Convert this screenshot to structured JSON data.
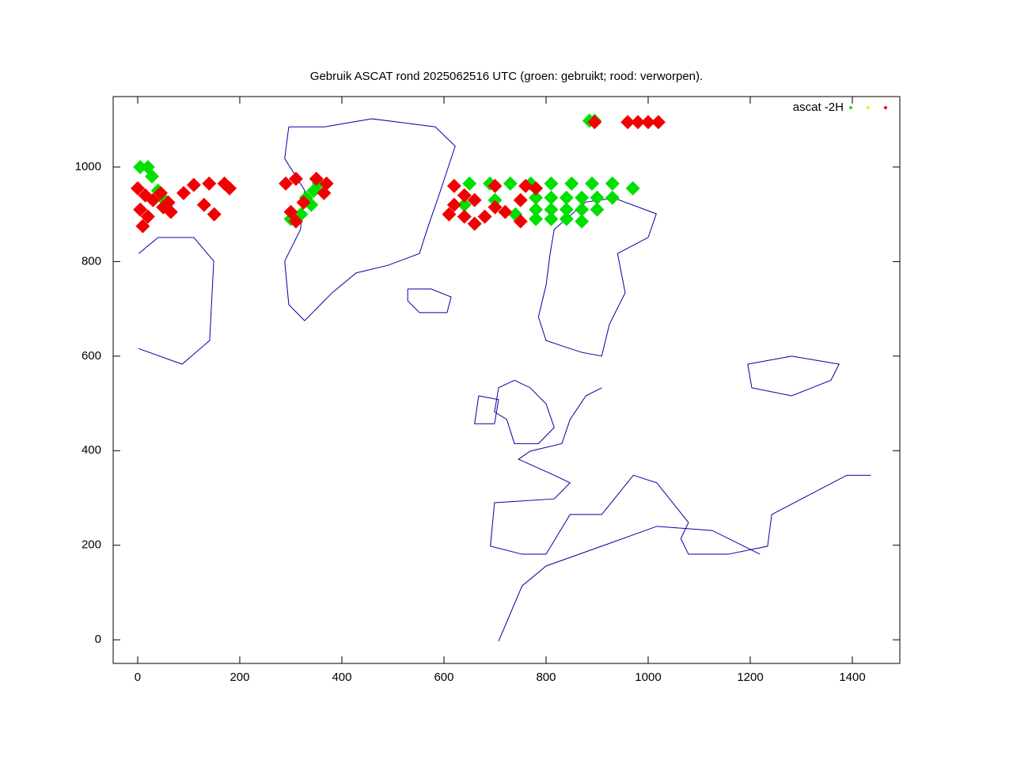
{
  "chart_data": {
    "type": "scatter",
    "title": "Gebruik ASCAT rond 2025062516 UTC (groen: gebruikt; rood: verworpen).",
    "xlim": [
      -48,
      1493
    ],
    "ylim": [
      -50,
      1149
    ],
    "xticks": [
      0,
      200,
      400,
      600,
      800,
      1000,
      1200,
      1400
    ],
    "yticks": [
      0,
      200,
      400,
      600,
      800,
      1000
    ],
    "legend": "top right",
    "series": [
      {
        "color": "#0000a0",
        "style": "line",
        "x": [
          296,
          366,
          459,
          583,
          622,
          591,
          567,
          552,
          490,
          428,
          381,
          327,
          296,
          288,
          319,
          327,
          288,
          296,
          null,
          529,
          575,
          614,
          606,
          552,
          529,
          529,
          null,
          816,
          878,
          934,
          1016,
          1000,
          940,
          955,
          924,
          909,
          870,
          847,
          800,
          785,
          800,
          808,
          816,
          null,
          738,
          769,
          800,
          816,
          785,
          738,
          723,
          699,
          707,
          738,
          null,
          668,
          707,
          699,
          660,
          668,
          null,
          909,
          878,
          847,
          831,
          769,
          746,
          816,
          847,
          816,
          699,
          691,
          753,
          800,
          847,
          909,
          971,
          1017,
          1079,
          1064,
          1079,
          1157,
          1234,
          1242,
          1389,
          1436,
          null,
          707,
          753,
          800,
          909,
          1017,
          1126,
          1219,
          null,
          1195,
          1281,
          1374,
          1358,
          1281,
          1203,
          1195,
          null,
          2,
          87,
          141,
          149,
          110,
          40,
          2
        ],
        "values": [
          1085,
          1085,
          1102,
          1085,
          1044,
          943,
          868,
          817,
          792,
          776,
          734,
          675,
          709,
          801,
          868,
          951,
          1018,
          1085,
          null,
          742,
          742,
          725,
          692,
          692,
          717,
          742,
          null,
          868,
          926,
          934,
          901,
          851,
          817,
          734,
          667,
          600,
          608,
          616,
          633,
          683,
          750,
          817,
          868,
          null,
          549,
          533,
          499,
          449,
          415,
          415,
          466,
          482,
          533,
          549,
          null,
          516,
          508,
          457,
          457,
          516,
          null,
          533,
          516,
          466,
          415,
          399,
          382,
          348,
          332,
          298,
          290,
          198,
          181,
          181,
          265,
          265,
          348,
          332,
          248,
          214,
          181,
          181,
          198,
          265,
          348,
          348,
          null,
          -3,
          114,
          156,
          198,
          240,
          231,
          181,
          null,
          583,
          600,
          583,
          549,
          516,
          533,
          583,
          null,
          616,
          583,
          633,
          801,
          851,
          851,
          817
        ]
      },
      {
        "name": "ascat -2H",
        "color": "#00e000",
        "x": [
          650,
          690,
          730,
          770,
          810,
          850,
          890,
          930,
          970,
          780,
          810,
          840,
          870,
          900,
          930,
          780,
          810,
          840,
          870,
          900,
          780,
          810,
          840,
          870,
          640,
          700,
          740,
          5,
          20,
          28,
          40,
          48,
          330,
          345,
          355,
          320,
          300,
          340,
          885,
          895
        ],
        "values": [
          965,
          965,
          965,
          965,
          965,
          965,
          965,
          965,
          955,
          935,
          935,
          935,
          935,
          935,
          935,
          910,
          910,
          910,
          910,
          910,
          890,
          890,
          890,
          885,
          920,
          930,
          900,
          1000,
          1000,
          980,
          950,
          935,
          935,
          950,
          965,
          900,
          890,
          920,
          1098,
          1098
        ]
      },
      {
        "color": "#f0f000",
        "x": [],
        "values": []
      },
      {
        "color": "#f00000",
        "x": [
          620,
          640,
          660,
          700,
          720,
          750,
          760,
          680,
          640,
          610,
          700,
          780,
          750,
          620,
          660,
          0,
          15,
          30,
          50,
          65,
          5,
          20,
          10,
          45,
          60,
          90,
          110,
          140,
          170,
          180,
          130,
          150,
          290,
          310,
          350,
          370,
          300,
          325,
          365,
          310,
          960,
          980,
          1000,
          1020,
          895
        ],
        "values": [
          960,
          940,
          930,
          915,
          905,
          930,
          960,
          895,
          895,
          900,
          960,
          955,
          885,
          920,
          880,
          955,
          940,
          930,
          915,
          905,
          910,
          895,
          875,
          945,
          925,
          945,
          962,
          965,
          965,
          955,
          920,
          900,
          965,
          975,
          975,
          965,
          905,
          925,
          945,
          885,
          1095,
          1095,
          1095,
          1095,
          1095
        ]
      }
    ]
  }
}
